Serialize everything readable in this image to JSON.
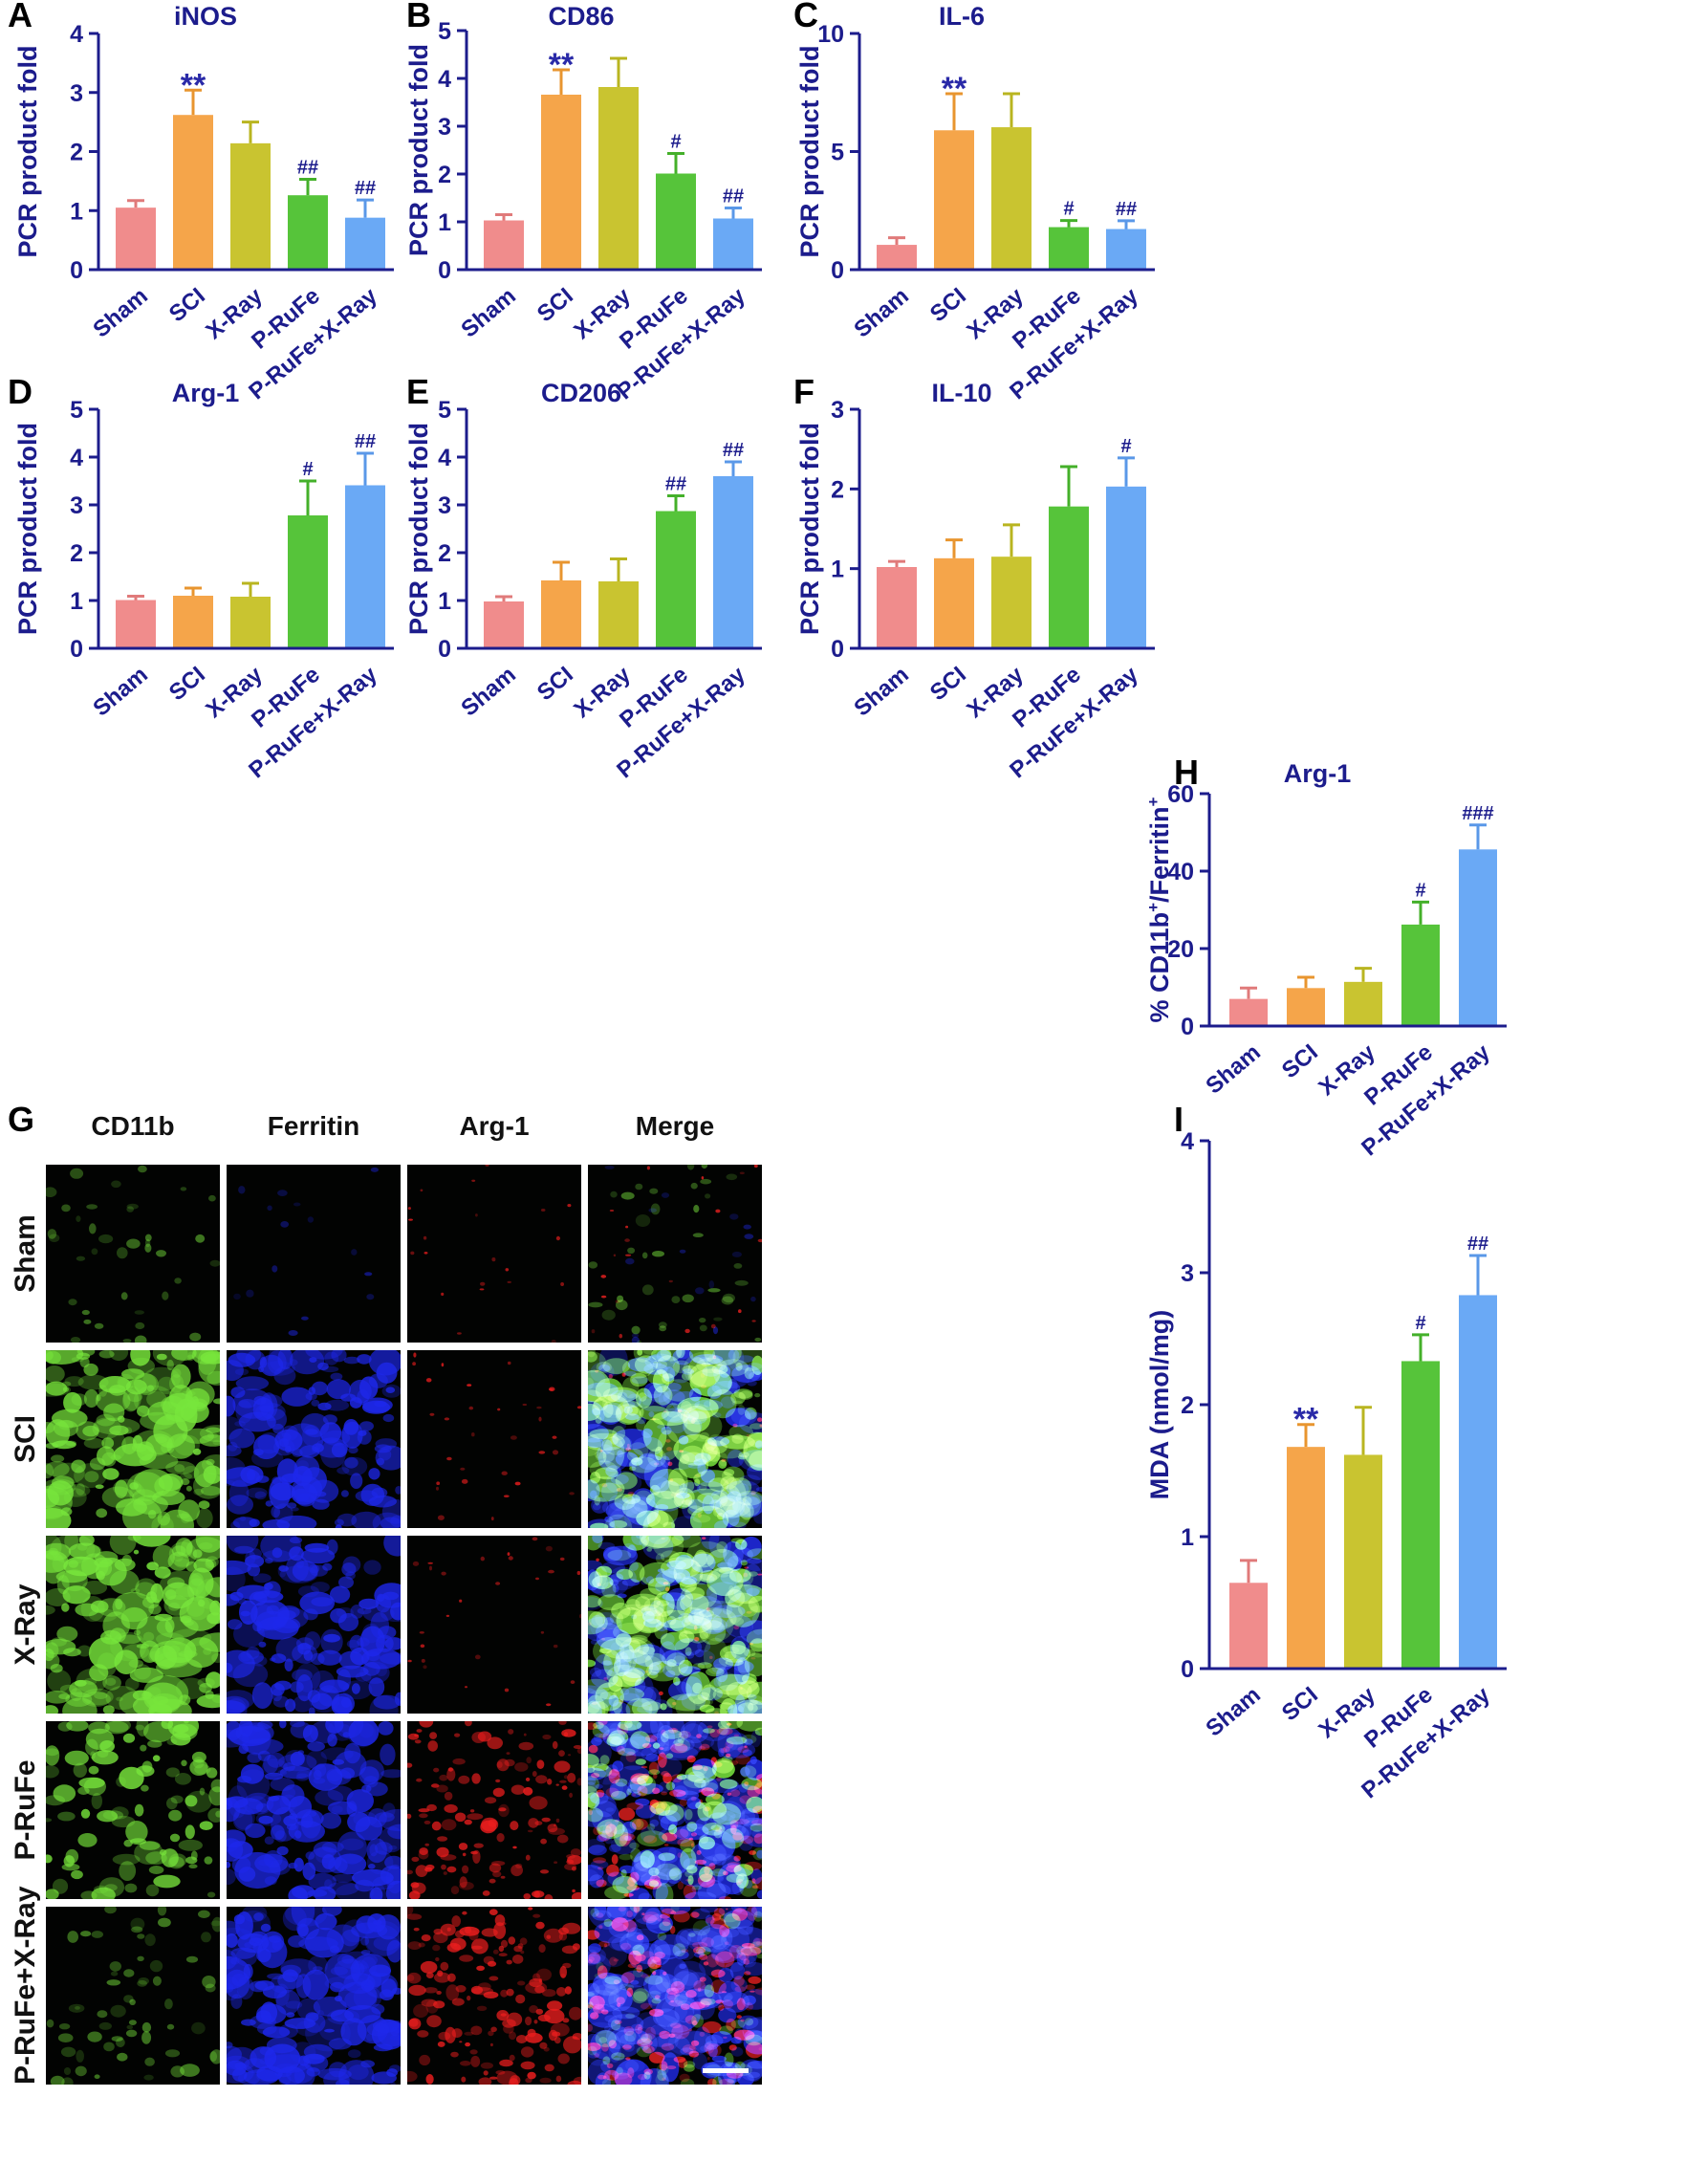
{
  "colors": {
    "axis": "#1c1c8c",
    "sig_star": "#2a2aa8",
    "bars": [
      "#f08c8c",
      "#f5a54a",
      "#c9c430",
      "#56c43a",
      "#6aa9f5"
    ],
    "errors": [
      "#e07a7a",
      "#e8952f",
      "#b9b520",
      "#44b02a",
      "#5a98e8"
    ]
  },
  "chart_data": [
    {
      "panel": "A",
      "type": "bar",
      "title": "iNOS",
      "ylabel": "PCR product fold",
      "categories": [
        "Sham",
        "SCI",
        "X-Ray",
        "P-RuFe",
        "P-RuFe+X-Ray"
      ],
      "values": [
        1.05,
        2.62,
        2.14,
        1.26,
        0.88
      ],
      "errors": [
        0.12,
        0.42,
        0.36,
        0.27,
        0.3
      ],
      "annotations": [
        "",
        "**",
        "",
        "##",
        "##"
      ],
      "ylim": [
        0,
        4
      ],
      "ticks": [
        "0",
        "1",
        "2",
        "3",
        "4"
      ]
    },
    {
      "panel": "B",
      "type": "bar",
      "title": "CD86",
      "ylabel": "PCR product fold",
      "categories": [
        "Sham",
        "SCI",
        "X-Ray",
        "P-RuFe",
        "P-RuFe+X-Ray"
      ],
      "values": [
        1.03,
        3.66,
        3.82,
        2.01,
        1.07
      ],
      "errors": [
        0.12,
        0.52,
        0.6,
        0.42,
        0.22
      ],
      "annotations": [
        "",
        "**",
        "",
        "#",
        "##"
      ],
      "ylim": [
        0,
        5
      ],
      "ticks": [
        "0",
        "1",
        "2",
        "3",
        "4",
        "5"
      ]
    },
    {
      "panel": "C",
      "type": "bar",
      "title": "IL-6",
      "ylabel": "PCR product fold",
      "categories": [
        "Sham",
        "SCI",
        "X-Ray",
        "P-RuFe",
        "P-RuFe+X-Ray"
      ],
      "values": [
        1.05,
        5.9,
        6.03,
        1.8,
        1.72
      ],
      "errors": [
        0.3,
        1.55,
        1.42,
        0.28,
        0.35
      ],
      "annotations": [
        "",
        "**",
        "",
        "#",
        "##"
      ],
      "ylim": [
        0,
        10
      ],
      "ticks": [
        "0",
        "5",
        "10"
      ]
    },
    {
      "panel": "D",
      "type": "bar",
      "title": "Arg-1",
      "ylabel": "PCR product fold",
      "categories": [
        "Sham",
        "SCI",
        "X-Ray",
        "P-RuFe",
        "P-RuFe+X-Ray"
      ],
      "values": [
        1.01,
        1.1,
        1.08,
        2.78,
        3.41
      ],
      "errors": [
        0.08,
        0.16,
        0.28,
        0.72,
        0.67
      ],
      "annotations": [
        "",
        "",
        "",
        "#",
        "##"
      ],
      "ylim": [
        0,
        5
      ],
      "ticks": [
        "0",
        "1",
        "2",
        "3",
        "4",
        "5"
      ]
    },
    {
      "panel": "E",
      "type": "bar",
      "title": "CD206",
      "ylabel": "PCR product fold",
      "categories": [
        "Sham",
        "SCI",
        "X-Ray",
        "P-RuFe",
        "P-RuFe+X-Ray"
      ],
      "values": [
        0.98,
        1.42,
        1.4,
        2.87,
        3.6
      ],
      "errors": [
        0.1,
        0.38,
        0.47,
        0.32,
        0.3
      ],
      "annotations": [
        "",
        "",
        "",
        "##",
        "##"
      ],
      "ylim": [
        0,
        5
      ],
      "ticks": [
        "0",
        "1",
        "2",
        "3",
        "4",
        "5"
      ]
    },
    {
      "panel": "F",
      "type": "bar",
      "title": "IL-10",
      "ylabel": "PCR product fold",
      "categories": [
        "Sham",
        "SCI",
        "X-Ray",
        "P-RuFe",
        "P-RuFe+X-Ray"
      ],
      "values": [
        1.02,
        1.13,
        1.15,
        1.78,
        2.03
      ],
      "errors": [
        0.07,
        0.23,
        0.4,
        0.5,
        0.36
      ],
      "annotations": [
        "",
        "",
        "",
        "",
        "#"
      ],
      "ylim": [
        0,
        3
      ],
      "ticks": [
        "0",
        "1",
        "2",
        "3"
      ]
    },
    {
      "panel": "H",
      "type": "bar",
      "title": "Arg-1",
      "ylabel_parts": [
        "% CD11b",
        "+",
        "/Ferritin",
        "+"
      ],
      "categories": [
        "Sham",
        "SCI",
        "X-Ray",
        "P-RuFe",
        "P-RuFe+X-Ray"
      ],
      "values": [
        7.0,
        9.8,
        11.4,
        26.2,
        45.6
      ],
      "errors": [
        2.8,
        2.8,
        3.5,
        5.8,
        6.3
      ],
      "annotations": [
        "",
        "",
        "",
        "#",
        "###"
      ],
      "ylim": [
        0,
        60
      ],
      "ticks": [
        "0",
        "20",
        "40",
        "60"
      ]
    },
    {
      "panel": "I",
      "type": "bar",
      "title": "",
      "ylabel": "MDA (nmol/mg)",
      "categories": [
        "Sham",
        "SCI",
        "X-Ray",
        "P-RuFe",
        "P-RuFe+X-Ray"
      ],
      "values": [
        0.65,
        1.68,
        1.62,
        2.33,
        2.83
      ],
      "errors": [
        0.17,
        0.17,
        0.36,
        0.2,
        0.3
      ],
      "annotations": [
        "",
        "**",
        "",
        "#",
        "##"
      ],
      "ylim": [
        0,
        4
      ],
      "ticks": [
        "0",
        "1",
        "2",
        "3",
        "4"
      ]
    }
  ],
  "micrograph": {
    "panel": "G",
    "columns": [
      "CD11b",
      "Ferritin",
      "Arg-1",
      "Merge"
    ],
    "rows": [
      "Sham",
      "SCI",
      "X-Ray",
      "P-RuFe",
      "P-RuFe+X-Ray"
    ]
  }
}
